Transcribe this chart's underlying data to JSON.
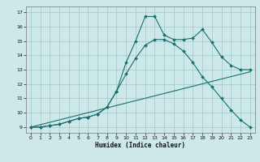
{
  "xlabel": "Humidex (Indice chaleur)",
  "xlim": [
    -0.5,
    23.5
  ],
  "ylim": [
    8.6,
    17.4
  ],
  "xticks": [
    0,
    1,
    2,
    3,
    4,
    5,
    6,
    7,
    8,
    9,
    10,
    11,
    12,
    13,
    14,
    15,
    16,
    17,
    18,
    19,
    20,
    21,
    22,
    23
  ],
  "yticks": [
    9,
    10,
    11,
    12,
    13,
    14,
    15,
    16,
    17
  ],
  "bg_color": "#cce8e8",
  "grid_color": "#a0c8c8",
  "line_color": "#1a7070",
  "line1_x": [
    0,
    1,
    2,
    3,
    4,
    5,
    6,
    7,
    8,
    9,
    10,
    11,
    12,
    13,
    14,
    15,
    16,
    17,
    18,
    19,
    20,
    21,
    22,
    23
  ],
  "line1_y": [
    9.0,
    9.0,
    9.1,
    9.2,
    9.4,
    9.6,
    9.7,
    9.9,
    10.4,
    11.5,
    13.5,
    15.0,
    16.7,
    16.7,
    15.4,
    15.1,
    15.1,
    15.2,
    15.8,
    14.9,
    13.9,
    13.3,
    13.0,
    13.0
  ],
  "line2_x": [
    0,
    1,
    2,
    3,
    4,
    5,
    6,
    7,
    8,
    9,
    10,
    11,
    12,
    13,
    14,
    15,
    16,
    17,
    18,
    19,
    20,
    21,
    22,
    23
  ],
  "line2_y": [
    9.0,
    9.0,
    9.1,
    9.2,
    9.4,
    9.6,
    9.7,
    9.9,
    10.4,
    11.5,
    12.7,
    13.8,
    14.7,
    15.1,
    15.1,
    14.8,
    14.3,
    13.5,
    12.5,
    11.8,
    11.0,
    10.2,
    9.5,
    9.0
  ],
  "line3_x": [
    0,
    23
  ],
  "line3_y": [
    9.0,
    12.85
  ],
  "figw": 3.2,
  "figh": 2.0,
  "dpi": 100
}
